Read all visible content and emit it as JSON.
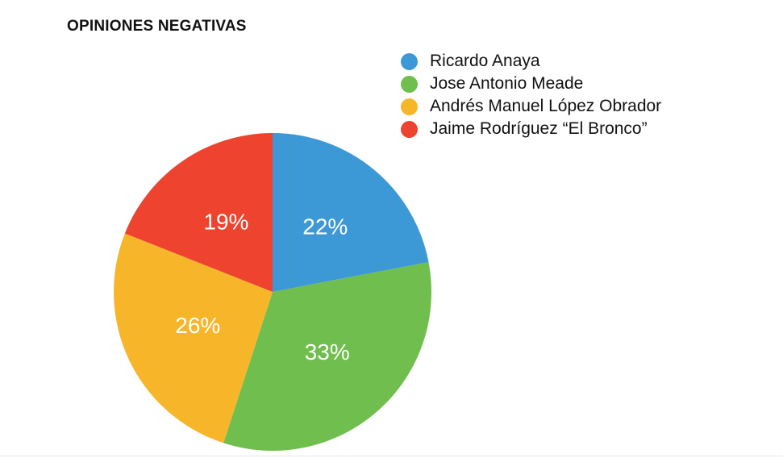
{
  "chart_data": {
    "type": "pie",
    "title": "OPINIONES NEGATIVAS",
    "categories": [
      "Ricardo Anaya",
      "Jose Antonio Meade",
      "Andrés Manuel López Obrador",
      "Jaime Rodríguez “El Bronco”"
    ],
    "values": [
      22,
      33,
      26,
      19
    ],
    "labels": [
      "22%",
      "33%",
      "26%",
      "19%"
    ],
    "colors": [
      "#3d99d6",
      "#70be4d",
      "#f7b62a",
      "#ee432e"
    ],
    "legend_position": "top-right"
  }
}
